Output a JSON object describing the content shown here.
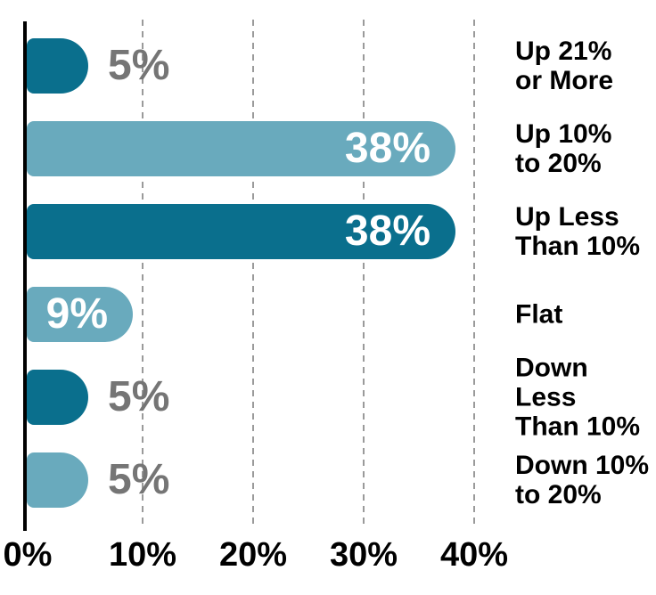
{
  "chart_data": {
    "type": "bar",
    "orientation": "horizontal",
    "title": "",
    "categories": [
      "Up 21%\nor More",
      "Up 10%\nto 20%",
      "Up Less\nThan 10%",
      "Flat",
      "Down Less\nThan 10%",
      "Down 10%\nto 20%"
    ],
    "values": [
      5,
      38,
      38,
      9,
      5,
      5
    ],
    "value_labels": [
      "5%",
      "38%",
      "38%",
      "9%",
      "5%",
      "5%"
    ],
    "value_label_placement": [
      "outside",
      "inside",
      "inside",
      "inside",
      "outside",
      "outside"
    ],
    "series_colors": [
      "#0A6F8D",
      "#69AABD",
      "#0A6F8D",
      "#69AABD",
      "#0A6F8D",
      "#69AABD"
    ],
    "x_tick_labels": [
      "0%",
      "10%",
      "20%",
      "30%",
      "40%"
    ],
    "x_tick_values": [
      0,
      10,
      20,
      30,
      40
    ],
    "xlim": [
      0,
      43
    ],
    "grid": "vertical-dashed",
    "legend_position": "none"
  },
  "colors": {
    "bar_dark": "#0A6F8D",
    "bar_light": "#69AABD",
    "value_label_inside": "#FFFFFF",
    "value_label_outside": "#757575",
    "category_label": "#000000",
    "tick_label": "#000000",
    "axis_line": "#000000",
    "gridline": "#9A9A9A",
    "background": "#FFFFFF"
  }
}
